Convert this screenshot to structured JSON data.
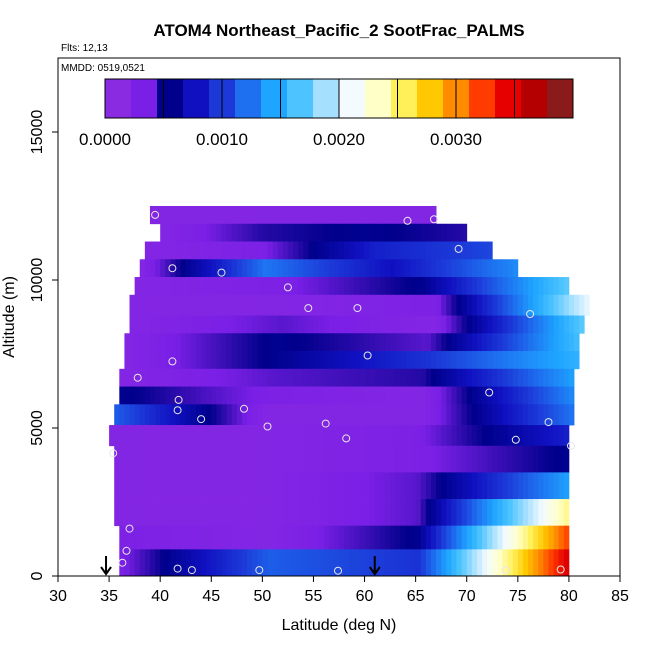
{
  "chart_data": {
    "type": "heatmap",
    "title": "ATOM4 Northeast_Pacific_2 SootFrac_PALMS",
    "flights_label": "Flts: 12,13",
    "date_label": "MMDD: 0519,0521",
    "xlabel": "Latitude (deg N)",
    "ylabel": "Altitude (m)",
    "xlim": [
      30,
      85
    ],
    "ylim": [
      0,
      17500
    ],
    "xticks": [
      "30",
      "35",
      "40",
      "45",
      "50",
      "55",
      "60",
      "65",
      "70",
      "75",
      "80",
      "85"
    ],
    "yticks": [
      "0",
      "5000",
      "10000",
      "15000"
    ],
    "colorbar": {
      "range": [
        0,
        0.004
      ],
      "ticks": [
        "0.0000",
        "0.0010",
        "0.0020",
        "0.0030"
      ],
      "colors": [
        "#8a2be2",
        "#7a1fe6",
        "#00008b",
        "#1010c0",
        "#1c39d8",
        "#1e70f0",
        "#1ea5ff",
        "#4dc4ff",
        "#a6e0ff",
        "#f4fbff",
        "#ffffc8",
        "#fff05a",
        "#ffc800",
        "#ff8c00",
        "#ff3c00",
        "#e60000",
        "#b40000",
        "#8b1a1a"
      ]
    },
    "altitude_bands": [
      {
        "alt": [
          11900,
          12500
        ],
        "lat": [
          39,
          67
        ],
        "values": [
          0.0001,
          0.0001,
          0.0001,
          0.0001
        ]
      },
      {
        "alt": [
          11300,
          11900
        ],
        "lat": [
          40,
          70
        ],
        "values": [
          0.0001,
          0.0004,
          0.0005,
          0.0004
        ]
      },
      {
        "alt": [
          10700,
          11300
        ],
        "lat": [
          38.5,
          72.5
        ],
        "values": [
          0.0001,
          0.0002,
          0.0008,
          0.001
        ]
      },
      {
        "alt": [
          10100,
          10700
        ],
        "lat": [
          38,
          75
        ],
        "values": [
          0.0001,
          0.0012,
          0.0007,
          0.0013
        ]
      },
      {
        "alt": [
          9500,
          10100
        ],
        "lat": [
          37.5,
          80
        ],
        "values": [
          0.0001,
          0.0002,
          0.0005,
          0.0017
        ]
      },
      {
        "alt": [
          8800,
          9500
        ],
        "lat": [
          37,
          82
        ],
        "values": [
          0.0001,
          0.0001,
          0.0002,
          0.0021
        ]
      },
      {
        "alt": [
          8200,
          8800
        ],
        "lat": [
          37,
          81.5
        ],
        "values": [
          0.0001,
          0.0003,
          0.0001,
          0.0017
        ]
      },
      {
        "alt": [
          7600,
          8200
        ],
        "lat": [
          36.5,
          81
        ],
        "values": [
          0.0001,
          0.0005,
          0.0003,
          0.0016
        ]
      },
      {
        "alt": [
          7000,
          7600
        ],
        "lat": [
          36.5,
          81
        ],
        "values": [
          0.0001,
          0.0005,
          0.0009,
          0.0015
        ]
      },
      {
        "alt": [
          6400,
          7000
        ],
        "lat": [
          36,
          80.5
        ],
        "values": [
          0.0001,
          0.0003,
          0.0004,
          0.0014
        ]
      },
      {
        "alt": [
          5800,
          6400
        ],
        "lat": [
          36,
          80.5
        ],
        "values": [
          0.0005,
          0.0002,
          0.0001,
          0.0013
        ]
      },
      {
        "alt": [
          5100,
          5800
        ],
        "lat": [
          35.5,
          80.5
        ],
        "values": [
          0.0011,
          0.0001,
          0.0001,
          0.0012
        ]
      },
      {
        "alt": [
          4400,
          5100
        ],
        "lat": [
          35,
          80
        ],
        "values": [
          0.0001,
          0.0001,
          0.0002,
          0.0008
        ]
      },
      {
        "alt": [
          3500,
          4400
        ],
        "lat": [
          35.5,
          80
        ],
        "values": [
          0.0001,
          0.0001,
          0.0002,
          0.0005
        ]
      },
      {
        "alt": [
          2600,
          3500
        ],
        "lat": [
          35.5,
          80
        ],
        "values": [
          0.0001,
          0.0001,
          0.0003,
          0.0014
        ]
      },
      {
        "alt": [
          1700,
          2600
        ],
        "lat": [
          35.5,
          80
        ],
        "values": [
          0.0001,
          0.0001,
          0.0003,
          0.0025
        ]
      },
      {
        "alt": [
          900,
          1700
        ],
        "lat": [
          36,
          80
        ],
        "values": [
          0.0002,
          0.0001,
          0.0005,
          0.0033
        ]
      },
      {
        "alt": [
          0,
          900
        ],
        "lat": [
          36,
          80
        ],
        "values": [
          0.0002,
          0.0011,
          0.0009,
          0.0036
        ]
      }
    ],
    "sample_points": [
      {
        "lat": 39.5,
        "alt": 12200
      },
      {
        "lat": 64.2,
        "alt": 12000
      },
      {
        "lat": 66.8,
        "alt": 12050
      },
      {
        "lat": 69.2,
        "alt": 11050
      },
      {
        "lat": 41.2,
        "alt": 10400
      },
      {
        "lat": 46,
        "alt": 10250
      },
      {
        "lat": 52.5,
        "alt": 9750
      },
      {
        "lat": 54.5,
        "alt": 9050
      },
      {
        "lat": 59.3,
        "alt": 9050
      },
      {
        "lat": 76.2,
        "alt": 8850
      },
      {
        "lat": 41.2,
        "alt": 7250
      },
      {
        "lat": 60.3,
        "alt": 7450
      },
      {
        "lat": 37.8,
        "alt": 6700
      },
      {
        "lat": 72.2,
        "alt": 6200
      },
      {
        "lat": 41.8,
        "alt": 5950
      },
      {
        "lat": 41.7,
        "alt": 5600
      },
      {
        "lat": 48.2,
        "alt": 5650
      },
      {
        "lat": 44,
        "alt": 5300
      },
      {
        "lat": 50.5,
        "alt": 5050
      },
      {
        "lat": 56.2,
        "alt": 5150
      },
      {
        "lat": 58.2,
        "alt": 4650
      },
      {
        "lat": 74.8,
        "alt": 4600
      },
      {
        "lat": 78,
        "alt": 5200
      },
      {
        "lat": 80.2,
        "alt": 4400
      },
      {
        "lat": 35.4,
        "alt": 4150
      },
      {
        "lat": 37,
        "alt": 1600
      },
      {
        "lat": 36.7,
        "alt": 850
      },
      {
        "lat": 36.3,
        "alt": 450
      },
      {
        "lat": 41.7,
        "alt": 250
      },
      {
        "lat": 43.1,
        "alt": 200
      },
      {
        "lat": 49.7,
        "alt": 200
      },
      {
        "lat": 57.4,
        "alt": 180
      },
      {
        "lat": 73.8,
        "alt": 200
      },
      {
        "lat": 79.2,
        "alt": 220
      }
    ],
    "arrow_markers": [
      {
        "lat": 34.7
      },
      {
        "lat": 61
      }
    ]
  }
}
